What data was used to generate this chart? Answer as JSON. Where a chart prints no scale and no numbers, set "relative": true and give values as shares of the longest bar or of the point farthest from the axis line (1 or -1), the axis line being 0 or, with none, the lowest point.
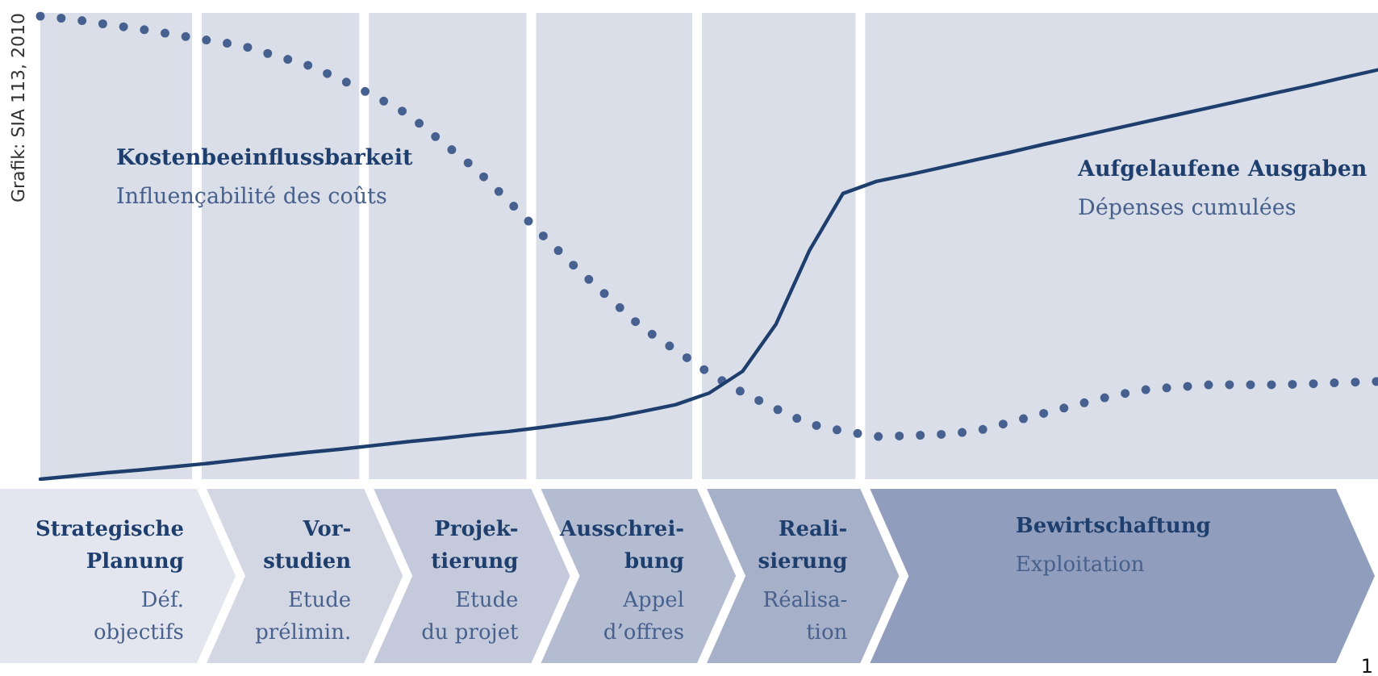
{
  "chart_data": {
    "type": "line",
    "relative": true,
    "legend": false,
    "marker": "none",
    "categories": [
      null,
      null,
      null,
      null,
      null,
      null,
      null,
      null,
      null,
      null,
      null,
      null,
      null,
      null,
      null,
      null,
      null,
      null,
      null,
      null,
      null,
      null,
      null,
      null,
      null,
      null,
      null,
      null,
      null,
      null,
      null,
      null,
      null,
      null,
      null,
      null,
      null,
      null,
      null,
      null,
      null
    ],
    "series": [
      {
        "name": "Kostenbeeinflussbarkeit\nInfluençabilité des coûts",
        "color": "#46618f",
        "line_style": "dotted",
        "values": [
          1,
          0.993,
          0.982,
          0.972,
          0.96,
          0.948,
          0.937,
          0.915,
          0.894,
          0.863,
          0.827,
          0.788,
          0.729,
          0.671,
          0.601,
          0.528,
          0.458,
          0.392,
          0.327,
          0.279,
          0.229,
          0.187,
          0.152,
          0.119,
          0.104,
          0.092,
          0.094,
          0.097,
          0.104,
          0.123,
          0.142,
          0.161,
          0.179,
          0.193,
          0.199,
          0.204,
          0.204,
          0.204,
          0.206,
          0.209,
          0.211
        ]
      },
      {
        "name": "Aufgelaufene Ausgaben\nDépenses cumulées",
        "color": "#1e3f6d",
        "line_style": "solid",
        "values": [
          0,
          0.007,
          0.014,
          0.02,
          0.027,
          0.034,
          0.042,
          0.05,
          0.058,
          0.065,
          0.073,
          0.081,
          0.088,
          0.096,
          0.103,
          0.112,
          0.122,
          0.132,
          0.146,
          0.161,
          0.186,
          0.233,
          0.335,
          0.494,
          0.617,
          0.643,
          0.658,
          0.674,
          0.69,
          0.706,
          0.723,
          0.739,
          0.755,
          0.771,
          0.787,
          0.803,
          0.819,
          0.835,
          0.851,
          0.868,
          0.884
        ]
      }
    ],
    "annotations": [
      "Strategische\nPlanung\nDéf.\nobjectifs",
      "Vor-\nstudien\nEtude\nprélimin.",
      "Projek-\ntierung\nEtude\ndu projet",
      "Ausschrei-\nbung\nAppel\nd’offres",
      "Reali-\nsierung\nRéalisa-\ntion",
      "Bewirtschaftung\nExploitation",
      "Grafik: SIA 113, 2010",
      "1"
    ]
  }
}
